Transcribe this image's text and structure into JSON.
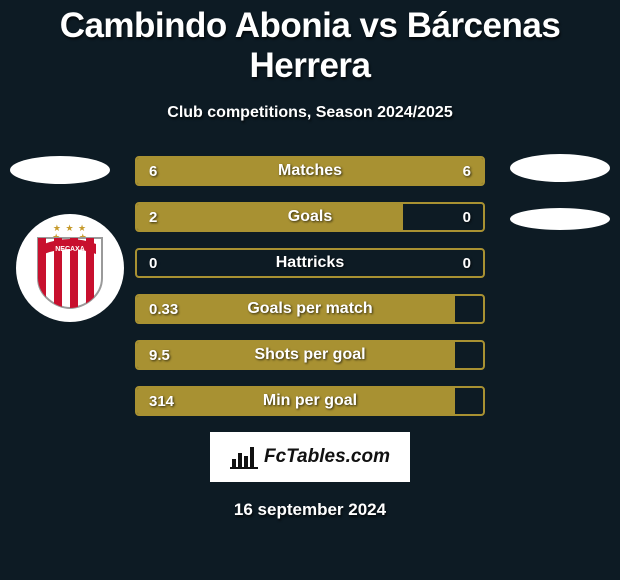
{
  "title": "Cambindo Abonia vs Bárcenas Herrera",
  "subtitle": "Club competitions, Season 2024/2025",
  "date": "16 september 2024",
  "brand": "FcTables.com",
  "background_color": "#0d1b24",
  "accent_color": "#a89132",
  "text_color": "#ffffff",
  "bars": [
    {
      "label": "Matches",
      "left": "6",
      "right": "6",
      "left_pct": 50,
      "right_pct": 50
    },
    {
      "label": "Goals",
      "left": "2",
      "right": "0",
      "left_pct": 77,
      "right_pct": 0
    },
    {
      "label": "Hattricks",
      "left": "0",
      "right": "0",
      "left_pct": 0,
      "right_pct": 0
    },
    {
      "label": "Goals per match",
      "left": "0.33",
      "right": "",
      "left_pct": 92,
      "right_pct": 0
    },
    {
      "label": "Shots per goal",
      "left": "9.5",
      "right": "",
      "left_pct": 92,
      "right_pct": 0
    },
    {
      "label": "Min per goal",
      "left": "314",
      "right": "",
      "left_pct": 92,
      "right_pct": 0
    }
  ],
  "logo": {
    "name": "NECAXA",
    "stripe_color": "#c8102e",
    "stripe_bg": "#ffffff",
    "outline_color": "#9a9a9a",
    "star_color": "#c69a2b"
  }
}
